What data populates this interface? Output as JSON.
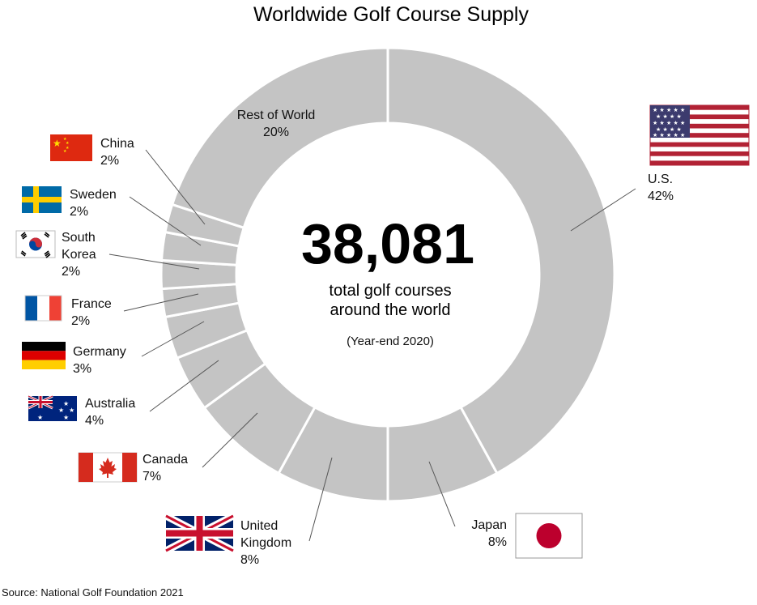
{
  "chart_data": {
    "type": "pie",
    "title": "Worldwide Golf Course Supply",
    "center": {
      "total": "38,081",
      "line1": "total golf courses",
      "line2": "around the world",
      "note": "(Year-end 2020)"
    },
    "source": "Source: National Golf Foundation 2021",
    "slices": [
      {
        "label": "U.S.",
        "lines": [
          "U.S."
        ],
        "pct_text": "42%",
        "value": 42,
        "flag": "us-flag"
      },
      {
        "label": "Japan",
        "lines": [
          "Japan"
        ],
        "pct_text": "8%",
        "value": 8,
        "flag": "japan-flag"
      },
      {
        "label": "United Kingdom",
        "lines": [
          "United",
          "Kingdom"
        ],
        "pct_text": "8%",
        "value": 8,
        "flag": "uk-flag"
      },
      {
        "label": "Canada",
        "lines": [
          "Canada"
        ],
        "pct_text": "7%",
        "value": 7,
        "flag": "canada-flag"
      },
      {
        "label": "Australia",
        "lines": [
          "Australia"
        ],
        "pct_text": "4%",
        "value": 4,
        "flag": "australia-flag"
      },
      {
        "label": "Germany",
        "lines": [
          "Germany"
        ],
        "pct_text": "3%",
        "value": 3,
        "flag": "germany-flag"
      },
      {
        "label": "France",
        "lines": [
          "France"
        ],
        "pct_text": "2%",
        "value": 2,
        "flag": "france-flag"
      },
      {
        "label": "South Korea",
        "lines": [
          "South",
          "Korea"
        ],
        "pct_text": "2%",
        "value": 2,
        "flag": "south-korea-flag"
      },
      {
        "label": "Sweden",
        "lines": [
          "Sweden"
        ],
        "pct_text": "2%",
        "value": 2,
        "flag": "sweden-flag"
      },
      {
        "label": "China",
        "lines": [
          "China"
        ],
        "pct_text": "2%",
        "value": 2,
        "flag": "china-flag"
      },
      {
        "label": "Rest of World",
        "lines": [
          "Rest of World"
        ],
        "pct_text": "20%",
        "value": 20,
        "flag": ""
      }
    ],
    "slice_color": "#c4c4c4",
    "separator_color": "#ffffff"
  }
}
